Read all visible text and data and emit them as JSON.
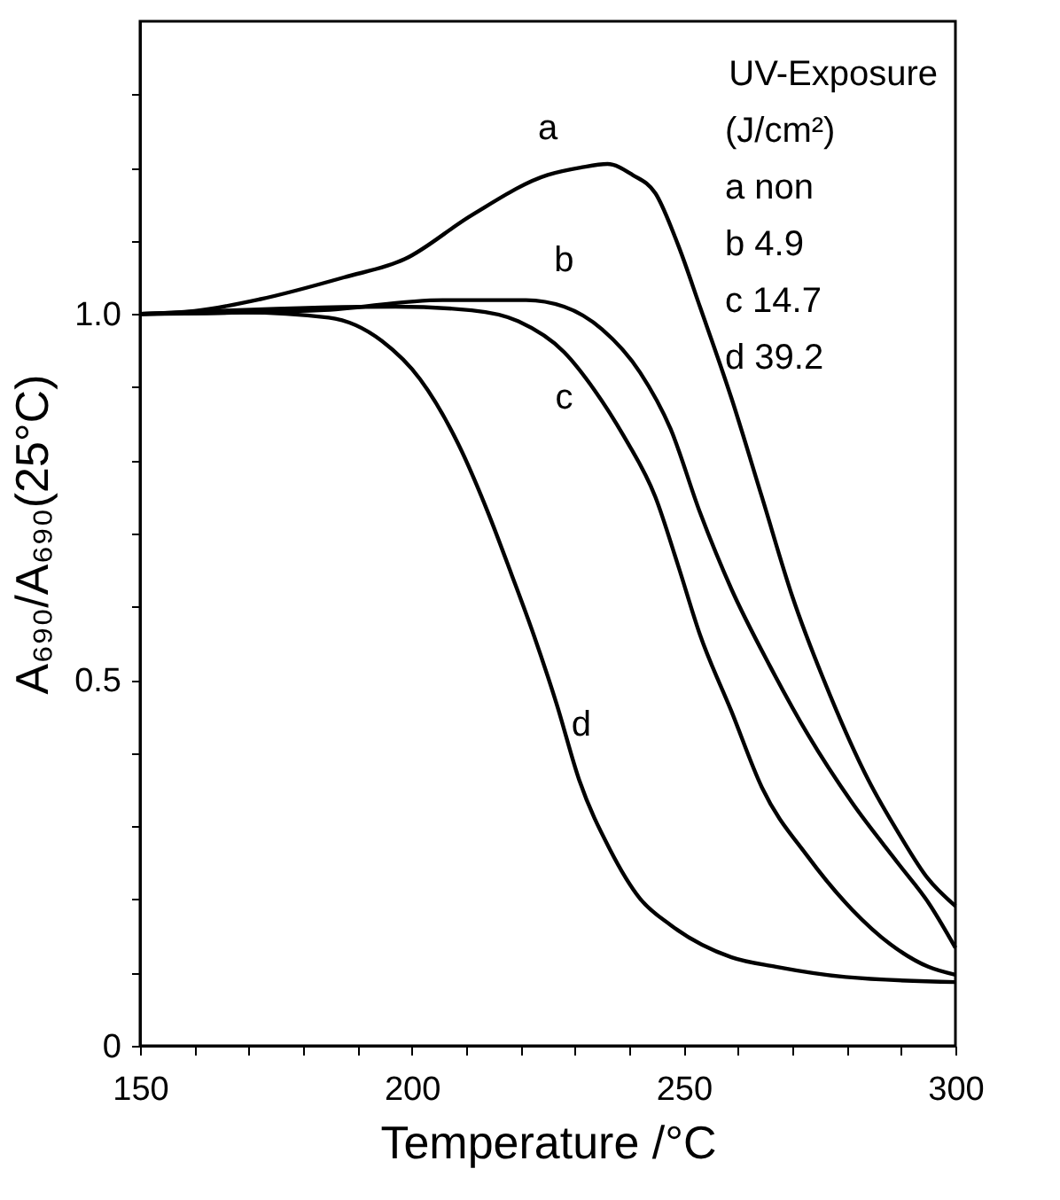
{
  "chart_data": {
    "type": "line",
    "xlabel": "Temperature  /°C",
    "ylabel": "A₆₉₀/A₆₉₀(25°C)",
    "legend_title": "UV-Exposure\n(J/cm²)",
    "annotations": [
      "a non",
      "b 4.9",
      "c 14.7",
      "d 39.2"
    ],
    "xlim": [
      150,
      300
    ],
    "ylim": [
      0,
      1.4
    ],
    "xticks": [
      150,
      {
        "value": 160,
        "label": null
      },
      {
        "value": 170,
        "label": null
      },
      {
        "value": 180,
        "label": null
      },
      {
        "value": 190,
        "label": null
      },
      200,
      {
        "value": 210,
        "label": null
      },
      {
        "value": 220,
        "label": null
      },
      {
        "value": 230,
        "label": null
      },
      {
        "value": 240,
        "label": null
      },
      250,
      {
        "value": 260,
        "label": null
      },
      {
        "value": 270,
        "label": null
      },
      {
        "value": 280,
        "label": null
      },
      {
        "value": 290,
        "label": null
      },
      300
    ],
    "yticks": [
      0,
      {
        "value": 0.1,
        "label": null
      },
      {
        "value": 0.2,
        "label": null
      },
      {
        "value": 0.3,
        "label": null
      },
      {
        "value": 0.4,
        "label": null
      },
      0.5,
      {
        "value": 0.6,
        "label": null
      },
      {
        "value": 0.7,
        "label": null
      },
      {
        "value": 0.8,
        "label": null
      },
      {
        "value": 0.9,
        "label": null
      },
      {
        "value": 1.0,
        "label": "1.0"
      },
      {
        "value": 1.1,
        "label": null
      },
      {
        "value": 1.2,
        "label": null
      },
      {
        "value": 1.3,
        "label": null
      }
    ],
    "grid": false,
    "legend": "top right",
    "marker": "none",
    "line_style": "solid",
    "series": [
      {
        "name": "a",
        "color": "#000000",
        "x": [
          150,
          160,
          172,
          187.5,
          198.7,
          211,
          225,
          231,
          236,
          240.6,
          244.8,
          249,
          253,
          258.8,
          264.4,
          270,
          277,
          284,
          289.6,
          295,
          300
        ],
        "values": [
          1.0,
          1.004,
          1.02,
          1.05,
          1.075,
          1.135,
          1.19,
          1.2,
          1.205,
          1.19,
          1.165,
          1.094,
          1.01,
          0.885,
          0.75,
          0.614,
          0.478,
          0.363,
          0.29,
          0.228,
          0.191
        ]
      },
      {
        "name": "b",
        "color": "#000000",
        "x": [
          150,
          183,
          205.7,
          221,
          228,
          235,
          242,
          247.6,
          253,
          258.8,
          265.8,
          272.8,
          281,
          289.6,
          295,
          300
        ],
        "values": [
          1.0,
          1.005,
          1.019,
          1.019,
          1.01,
          0.979,
          0.92,
          0.843,
          0.729,
          0.624,
          0.52,
          0.426,
          0.332,
          0.248,
          0.196,
          0.134
        ]
      },
      {
        "name": "c",
        "color": "#000000",
        "x": [
          150,
          197,
          211,
          219.6,
          228,
          233.6,
          239,
          244.8,
          249,
          253,
          258.8,
          264.4,
          272.8,
          281,
          288,
          295,
          300
        ],
        "values": [
          1.0,
          1.01,
          1.005,
          0.99,
          0.948,
          0.896,
          0.833,
          0.75,
          0.656,
          0.562,
          0.457,
          0.353,
          0.259,
          0.186,
          0.139,
          0.108,
          0.097
        ]
      },
      {
        "name": "d",
        "color": "#000000",
        "x": [
          150,
          169,
          184.7,
          194.5,
          201.5,
          208.5,
          214,
          218.3,
          222.4,
          226.6,
          230.8,
          236.4,
          242,
          247.6,
          258.8,
          267,
          279.8,
          300
        ],
        "values": [
          1.0,
          1.002,
          0.995,
          0.963,
          0.911,
          0.823,
          0.729,
          0.645,
          0.562,
          0.468,
          0.363,
          0.269,
          0.201,
          0.165,
          0.121,
          0.108,
          0.094,
          0.087
        ]
      }
    ]
  }
}
